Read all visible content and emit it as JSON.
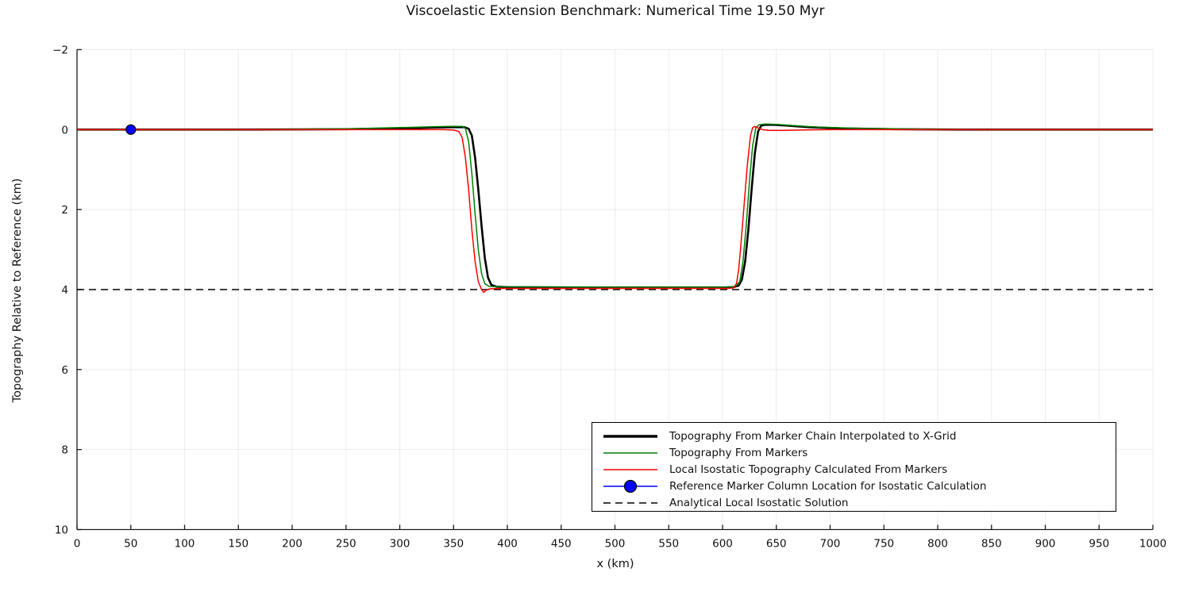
{
  "chart_data": {
    "type": "line",
    "title": "Viscoelastic Extension Benchmark: Numerical Time 19.50 Myr",
    "xlabel": "x (km)",
    "ylabel": "Topography Relative to Reference (km)",
    "xlim": [
      0,
      1000
    ],
    "ylim": [
      -2,
      10
    ],
    "y_axis_inverted": true,
    "x_ticks": [
      0,
      50,
      100,
      150,
      200,
      250,
      300,
      350,
      400,
      450,
      500,
      550,
      600,
      650,
      700,
      750,
      800,
      850,
      900,
      950,
      1000
    ],
    "y_ticks": [
      -2,
      0,
      2,
      4,
      6,
      8,
      10
    ],
    "grid": true,
    "grid_color": "rgba(0,0,0,0.07)",
    "axis_color": "#1a1a1a",
    "legend_position": "inside lower right",
    "series": [
      {
        "name": "Topography From Marker Chain Interpolated to X-Grid",
        "type": "line",
        "color": "#000000",
        "width": 2.6,
        "legend_style": "thick-line",
        "points": [
          [
            0,
            0
          ],
          [
            150,
            0
          ],
          [
            250,
            -0.01
          ],
          [
            300,
            -0.03
          ],
          [
            330,
            -0.05
          ],
          [
            350,
            -0.06
          ],
          [
            360,
            -0.06
          ],
          [
            364,
            -0.02
          ],
          [
            367,
            0.15
          ],
          [
            370,
            0.7
          ],
          [
            373,
            1.5
          ],
          [
            376,
            2.4
          ],
          [
            379,
            3.2
          ],
          [
            382,
            3.7
          ],
          [
            385,
            3.88
          ],
          [
            390,
            3.93
          ],
          [
            400,
            3.94
          ],
          [
            500,
            3.95
          ],
          [
            600,
            3.95
          ],
          [
            610,
            3.94
          ],
          [
            615,
            3.9
          ],
          [
            618,
            3.75
          ],
          [
            621,
            3.3
          ],
          [
            624,
            2.5
          ],
          [
            627,
            1.5
          ],
          [
            630,
            0.6
          ],
          [
            633,
            0.05
          ],
          [
            636,
            -0.1
          ],
          [
            640,
            -0.12
          ],
          [
            648,
            -0.12
          ],
          [
            660,
            -0.1
          ],
          [
            680,
            -0.06
          ],
          [
            710,
            -0.03
          ],
          [
            760,
            -0.01
          ],
          [
            820,
            0
          ],
          [
            1000,
            0
          ]
        ]
      },
      {
        "name": "Topography From Markers",
        "type": "line",
        "color": "#008000",
        "width": 1.5,
        "legend_style": "line",
        "points": [
          [
            0,
            0
          ],
          [
            150,
            0
          ],
          [
            250,
            -0.02
          ],
          [
            300,
            -0.05
          ],
          [
            330,
            -0.07
          ],
          [
            350,
            -0.08
          ],
          [
            358,
            -0.08
          ],
          [
            361,
            -0.03
          ],
          [
            364,
            0.3
          ],
          [
            367,
            1.1
          ],
          [
            370,
            2.1
          ],
          [
            373,
            3.0
          ],
          [
            376,
            3.6
          ],
          [
            379,
            3.85
          ],
          [
            383,
            3.92
          ],
          [
            390,
            3.93
          ],
          [
            500,
            3.94
          ],
          [
            600,
            3.94
          ],
          [
            612,
            3.92
          ],
          [
            616,
            3.8
          ],
          [
            619,
            3.3
          ],
          [
            622,
            2.4
          ],
          [
            625,
            1.3
          ],
          [
            628,
            0.4
          ],
          [
            631,
            -0.05
          ],
          [
            634,
            -0.12
          ],
          [
            640,
            -0.14
          ],
          [
            650,
            -0.13
          ],
          [
            665,
            -0.1
          ],
          [
            690,
            -0.06
          ],
          [
            730,
            -0.03
          ],
          [
            790,
            -0.01
          ],
          [
            850,
            0
          ],
          [
            1000,
            0
          ]
        ]
      },
      {
        "name": "Local Isostatic Topography Calculated From Markers",
        "type": "line",
        "color": "#ff0000",
        "width": 1.5,
        "legend_style": "line",
        "points": [
          [
            0,
            0
          ],
          [
            340,
            0
          ],
          [
            350,
            0.01
          ],
          [
            355,
            0.05
          ],
          [
            358,
            0.2
          ],
          [
            361,
            0.7
          ],
          [
            364,
            1.5
          ],
          [
            367,
            2.5
          ],
          [
            370,
            3.3
          ],
          [
            373,
            3.8
          ],
          [
            376,
            4.0
          ],
          [
            378,
            4.07
          ],
          [
            380,
            4.02
          ],
          [
            384,
            3.98
          ],
          [
            395,
            3.97
          ],
          [
            500,
            3.97
          ],
          [
            605,
            3.97
          ],
          [
            610,
            3.96
          ],
          [
            613,
            3.85
          ],
          [
            615,
            3.5
          ],
          [
            617,
            2.9
          ],
          [
            620,
            1.9
          ],
          [
            623,
            0.9
          ],
          [
            626,
            0.15
          ],
          [
            628,
            -0.05
          ],
          [
            630,
            -0.08
          ],
          [
            633,
            -0.04
          ],
          [
            637,
            0.0
          ],
          [
            643,
            0.02
          ],
          [
            655,
            0.02
          ],
          [
            675,
            0.01
          ],
          [
            700,
            0
          ],
          [
            1000,
            0
          ]
        ]
      },
      {
        "name": "Reference Marker Column Location for Isostatic Calculation",
        "type": "line-marker",
        "color": "#0000ff",
        "width": 1.5,
        "marker_fill": "#0000ff",
        "marker_edge": "#000000",
        "marker_radius": 6,
        "legend_style": "line-marker",
        "points": [
          [
            50,
            0
          ]
        ]
      },
      {
        "name": "Analytical Local Isostatic Solution",
        "type": "dashed-line",
        "color": "#000000",
        "width": 1.5,
        "dash": "9 6",
        "legend_style": "dashed-line",
        "points": [
          [
            0,
            4
          ],
          [
            1000,
            4
          ]
        ]
      }
    ]
  }
}
